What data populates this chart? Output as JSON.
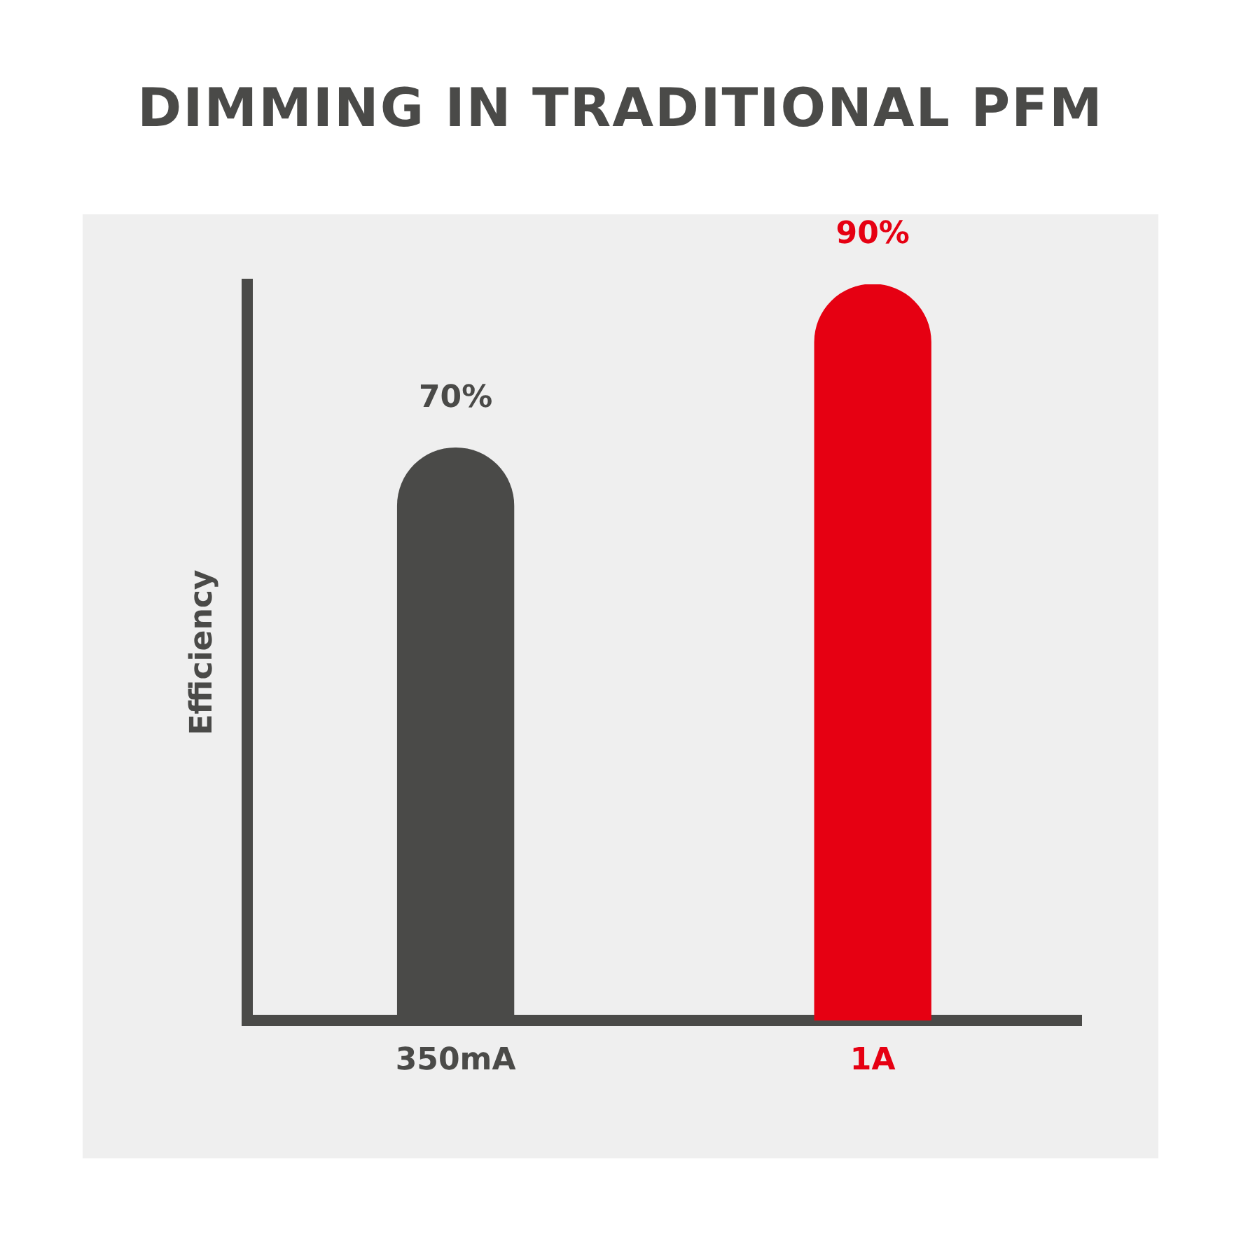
{
  "chart_data": {
    "type": "bar",
    "title": "DIMMING IN TRADITIONAL PFM",
    "ylabel": "Efficiency",
    "categories": [
      "350mA",
      "1A"
    ],
    "values": [
      70,
      90
    ],
    "colors": [
      "#4a4a48",
      "#e60012"
    ],
    "value_labels": [
      "70%",
      "90%"
    ],
    "tick_labels": "x",
    "grid": false,
    "legend": false
  }
}
